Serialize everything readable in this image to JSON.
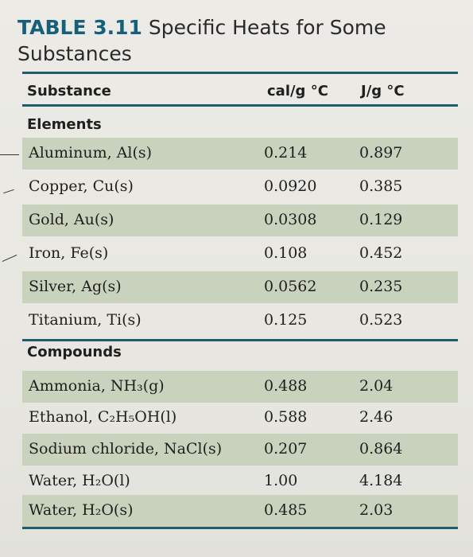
{
  "table": {
    "label": "TABLE 3.11",
    "title_line1": "Specific Heats for Some",
    "title_line2": "Substances",
    "headers": {
      "substance": "Substance",
      "cal": "cal/g °C",
      "j": "J/g °C"
    },
    "sections": [
      {
        "name": "Elements",
        "rows": [
          {
            "substance": "Aluminum, Al(s)",
            "cal": "0.214",
            "j": "0.897"
          },
          {
            "substance": "Copper, Cu(s)",
            "cal": "0.0920",
            "j": "0.385"
          },
          {
            "substance": "Gold, Au(s)",
            "cal": "0.0308",
            "j": "0.129"
          },
          {
            "substance": "Iron, Fe(s)",
            "cal": "0.108",
            "j": "0.452"
          },
          {
            "substance": "Silver, Ag(s)",
            "cal": "0.0562",
            "j": "0.235"
          },
          {
            "substance": "Titanium, Ti(s)",
            "cal": "0.125",
            "j": "0.523"
          }
        ]
      },
      {
        "name": "Compounds",
        "rows": [
          {
            "substance": "Ammonia, NH₃(g)",
            "cal": "0.488",
            "j": "2.04"
          },
          {
            "substance": "Ethanol, C₂H₅OH(l)",
            "cal": "0.588",
            "j": "2.46"
          },
          {
            "substance": "Sodium chloride, NaCl(s)",
            "cal": "0.207",
            "j": "0.864"
          },
          {
            "substance": "Water, H₂O(l)",
            "cal": "1.00",
            "j": "4.184"
          },
          {
            "substance": "Water, H₂O(s)",
            "cal": "0.485",
            "j": "2.03"
          }
        ]
      }
    ]
  }
}
